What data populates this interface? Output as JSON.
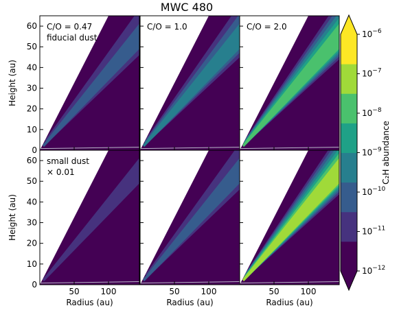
{
  "figure": {
    "title": "MWC 480"
  },
  "colors": {
    "viridis": [
      "#440154",
      "#46327e",
      "#365c8d",
      "#277f8e",
      "#1fa187",
      "#4ac16d",
      "#a0da39",
      "#fde725"
    ],
    "background_fill": "#440154",
    "axes_outside_wedge": "#ffffff"
  },
  "chart_data": {
    "type": "heatmap",
    "title": "MWC 480",
    "xlabel": "Radius (au)",
    "ylabel": "Height (au)",
    "xticks": [
      50,
      100
    ],
    "yticks": [
      0,
      10,
      20,
      30,
      40,
      50,
      60
    ],
    "xlim": [
      0,
      145
    ],
    "ylim": [
      0,
      65
    ],
    "panels": [
      {
        "row": 0,
        "col": 0,
        "label_lines": [
          "C/O = 0.47",
          "fiducial dust"
        ],
        "peak_log_abundance": -10.2
      },
      {
        "row": 0,
        "col": 1,
        "label_lines": [
          "C/O = 1.0"
        ],
        "peak_log_abundance": -9.4
      },
      {
        "row": 0,
        "col": 2,
        "label_lines": [
          "C/O = 2.0"
        ],
        "peak_log_abundance": -7.6
      },
      {
        "row": 1,
        "col": 0,
        "label_lines": [
          "small dust",
          "× 0.01"
        ],
        "peak_log_abundance": -11.2
      },
      {
        "row": 1,
        "col": 1,
        "label_lines": [],
        "peak_log_abundance": -10.0
      },
      {
        "row": 1,
        "col": 2,
        "label_lines": [],
        "peak_log_abundance": -7.4
      }
    ],
    "colorbar": {
      "label": "C₂H abundance",
      "scale": "log",
      "range": [
        -12,
        -6
      ],
      "levels": 8,
      "tick_exponents": [
        -6,
        -7,
        -8,
        -9,
        -10,
        -11,
        -12
      ],
      "tick_base": "10",
      "extend": "both"
    }
  }
}
